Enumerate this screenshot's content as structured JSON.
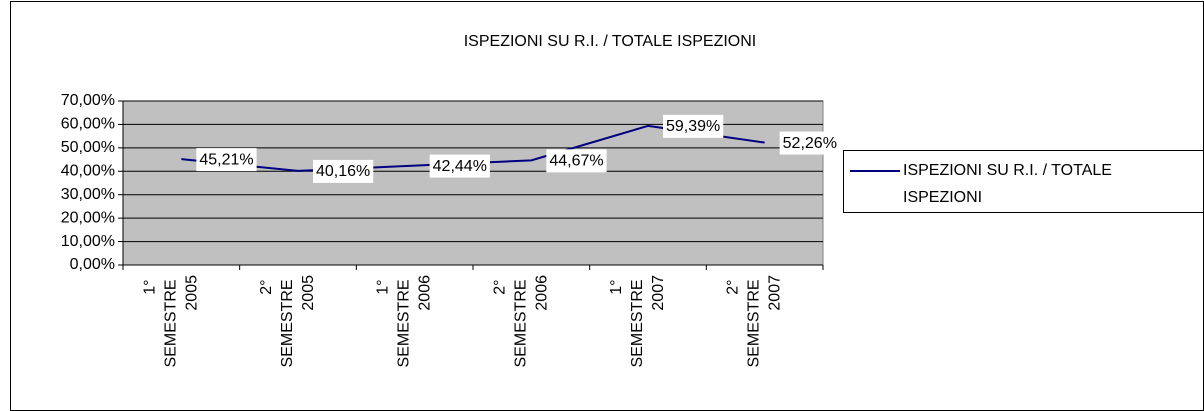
{
  "chart_data": {
    "type": "line",
    "title": "ISPEZIONI SU R.I. /  TOTALE ISPEZIONI",
    "categories": [
      "1° SEMESTRE 2005",
      "2° SEMESTRE 2005",
      "1° SEMESTRE 2006",
      "2° SEMESTRE 2006",
      "1° SEMESTRE 2007",
      "2° SEMESTRE 2007"
    ],
    "series": [
      {
        "name": "ISPEZIONI SU R.I. /  TOTALE ISPEZIONI",
        "color": "#000080",
        "values": [
          45.21,
          40.16,
          42.44,
          44.67,
          59.39,
          52.26
        ],
        "value_labels": [
          "45,21%",
          "40,16%",
          "42,44%",
          "44,67%",
          "59,39%",
          "52,26%"
        ]
      }
    ],
    "ylim": [
      0,
      70
    ],
    "yticks": [
      {
        "value": 0,
        "label": "0,00%"
      },
      {
        "value": 10,
        "label": "10,00%"
      },
      {
        "value": 20,
        "label": "20,00%"
      },
      {
        "value": 30,
        "label": "30,00%"
      },
      {
        "value": 40,
        "label": "40,00%"
      },
      {
        "value": 50,
        "label": "50,00%"
      },
      {
        "value": 60,
        "label": "60,00%"
      },
      {
        "value": 70,
        "label": "70,00%"
      }
    ],
    "grid": true,
    "legend": "right"
  }
}
